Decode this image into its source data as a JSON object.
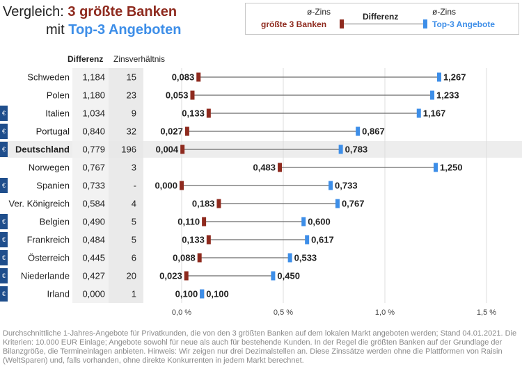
{
  "title": {
    "line1_prefix": "Vergleich: ",
    "line1_highlight": "3 größte Banken",
    "line2_prefix": "mit ",
    "line2_highlight": "Top-3 Angeboten"
  },
  "legend": {
    "left_top": "ø-Zins",
    "left_bottom": "größte 3 Banken",
    "middle": "Differenz",
    "right_top": "ø-Zins",
    "right_bottom": "Top-3 Angebote"
  },
  "columns": {
    "diff_header": "Differenz",
    "ratio_header": "Zinsverhältnis"
  },
  "euro_symbol": "€",
  "colors": {
    "big_banks": "#8e2a1e",
    "top_offers": "#3d8ee8",
    "connector": "#6b6b6b",
    "euro_badge": "#1f4e8c",
    "highlight_row": "#ededed",
    "column_bg": "#f0f0f0",
    "grid": "#dddddd"
  },
  "chart_data": {
    "type": "dumbbell",
    "x_unit": "%",
    "xlim": [
      0,
      1.6
    ],
    "x_ticks": [
      {
        "value": 0.0,
        "label": "0,0 %"
      },
      {
        "value": 0.5,
        "label": "0,5 %"
      },
      {
        "value": 1.0,
        "label": "1,0 %"
      },
      {
        "value": 1.5,
        "label": "1,5 %"
      }
    ],
    "grid": true,
    "series": [
      {
        "name": "größte 3 Banken",
        "key": "low"
      },
      {
        "name": "Top-3 Angebote",
        "key": "high"
      }
    ],
    "rows": [
      {
        "country": "Schweden",
        "euro": false,
        "highlight": false,
        "diff": "1,184",
        "ratio": "15",
        "low": 0.083,
        "low_label": "0,083",
        "high": 1.267,
        "high_label": "1,267"
      },
      {
        "country": "Polen",
        "euro": false,
        "highlight": false,
        "diff": "1,180",
        "ratio": "23",
        "low": 0.053,
        "low_label": "0,053",
        "high": 1.233,
        "high_label": "1,233"
      },
      {
        "country": "Italien",
        "euro": true,
        "highlight": false,
        "diff": "1,034",
        "ratio": "9",
        "low": 0.133,
        "low_label": "0,133",
        "high": 1.167,
        "high_label": "1,167"
      },
      {
        "country": "Portugal",
        "euro": true,
        "highlight": false,
        "diff": "0,840",
        "ratio": "32",
        "low": 0.027,
        "low_label": "0,027",
        "high": 0.867,
        "high_label": "0,867"
      },
      {
        "country": "Deutschland",
        "euro": true,
        "highlight": true,
        "diff": "0,779",
        "ratio": "196",
        "low": 0.004,
        "low_label": "0,004",
        "high": 0.783,
        "high_label": "0,783"
      },
      {
        "country": "Norwegen",
        "euro": false,
        "highlight": false,
        "diff": "0,767",
        "ratio": "3",
        "low": 0.483,
        "low_label": "0,483",
        "high": 1.25,
        "high_label": "1,250"
      },
      {
        "country": "Spanien",
        "euro": true,
        "highlight": false,
        "diff": "0,733",
        "ratio": "-",
        "low": 0.0,
        "low_label": "0,000",
        "high": 0.733,
        "high_label": "0,733"
      },
      {
        "country": "Ver. Königreich",
        "euro": false,
        "highlight": false,
        "diff": "0,584",
        "ratio": "4",
        "low": 0.183,
        "low_label": "0,183",
        "high": 0.767,
        "high_label": "0,767"
      },
      {
        "country": "Belgien",
        "euro": true,
        "highlight": false,
        "diff": "0,490",
        "ratio": "5",
        "low": 0.11,
        "low_label": "0,110",
        "high": 0.6,
        "high_label": "0,600"
      },
      {
        "country": "Frankreich",
        "euro": true,
        "highlight": false,
        "diff": "0,484",
        "ratio": "5",
        "low": 0.133,
        "low_label": "0,133",
        "high": 0.617,
        "high_label": "0,617"
      },
      {
        "country": "Österreich",
        "euro": true,
        "highlight": false,
        "diff": "0,445",
        "ratio": "6",
        "low": 0.088,
        "low_label": "0,088",
        "high": 0.533,
        "high_label": "0,533"
      },
      {
        "country": "Niederlande",
        "euro": true,
        "highlight": false,
        "diff": "0,427",
        "ratio": "20",
        "low": 0.023,
        "low_label": "0,023",
        "high": 0.45,
        "high_label": "0,450"
      },
      {
        "country": "Irland",
        "euro": true,
        "highlight": false,
        "diff": "0,000",
        "ratio": "1",
        "low": 0.1,
        "low_label": "0,100",
        "high": 0.1,
        "high_label": "0,100"
      }
    ]
  },
  "footnote": "Durchschnittliche 1-Jahres-Angebote für Privatkunden, die von den 3 größten Banken auf dem lokalen Markt angeboten werden; Stand 04.01.2021. Die Kriterien: 10.000 EUR Einlage; Angebote sowohl für neue als auch für bestehende Kunden. In der Regel die größten Banken auf der Grundlage der Bilanzgröße, die Termineinlagen anbieten. Hinweis: Wir zeigen nur drei Dezimalstellen an. Diese Zinssätze werden ohne die Plattformen von Raisin (WeltSparen) und, falls vorhanden, ohne direkte Konkurrenten in jedem Markt berechnet."
}
